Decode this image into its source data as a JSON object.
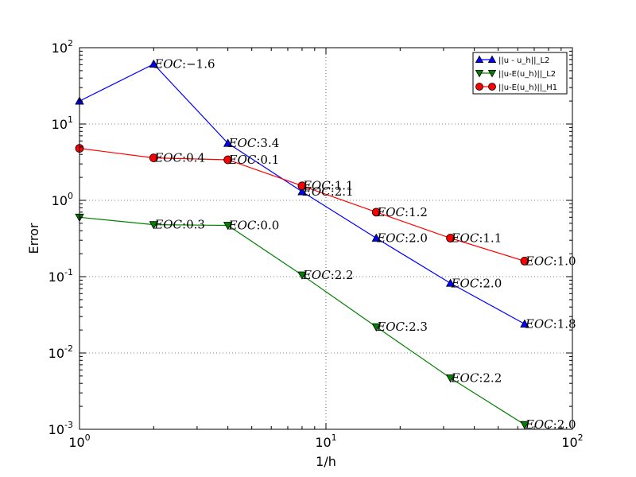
{
  "chart_data": {
    "type": "line",
    "xscale": "log",
    "yscale": "log",
    "xlabel": "1/h",
    "ylabel": "Error",
    "xlim": [
      1,
      100
    ],
    "ylim": [
      0.001,
      100
    ],
    "grid": true,
    "legend_position": "top-right",
    "x_ticks": [
      {
        "value": 1,
        "base": "10",
        "exp": "0"
      },
      {
        "value": 10,
        "base": "10",
        "exp": "1"
      },
      {
        "value": 100,
        "base": "10",
        "exp": "2"
      }
    ],
    "y_ticks": [
      {
        "value": 0.001,
        "base": "10",
        "exp": "-3"
      },
      {
        "value": 0.01,
        "base": "10",
        "exp": "-2"
      },
      {
        "value": 0.1,
        "base": "10",
        "exp": "-1"
      },
      {
        "value": 1,
        "base": "10",
        "exp": "0"
      },
      {
        "value": 10,
        "base": "10",
        "exp": "1"
      },
      {
        "value": 100,
        "base": "10",
        "exp": "2"
      }
    ],
    "x": [
      1,
      2,
      4,
      8,
      16,
      32,
      64
    ],
    "series": [
      {
        "name": "||u - u_h||_L2",
        "color": "#0000ff",
        "marker": "triangle-up",
        "values": [
          20,
          61,
          5.6,
          1.3,
          0.32,
          0.082,
          0.024
        ],
        "annotations": [
          "",
          "−1.6",
          "3.4",
          "2.1",
          "2.0",
          "2.0",
          "1.8"
        ]
      },
      {
        "name": "||u-E(u_h)||_L2",
        "color": "#008000",
        "marker": "triangle-down",
        "values": [
          0.6,
          0.48,
          0.47,
          0.105,
          0.022,
          0.0047,
          0.00115
        ],
        "annotations": [
          "",
          "0.3",
          "0.0",
          "2.2",
          "2.3",
          "2.2",
          "2.0"
        ]
      },
      {
        "name": "||u-E(u_h)||_H1",
        "color": "#ff0000",
        "marker": "circle",
        "values": [
          4.8,
          3.6,
          3.4,
          1.55,
          0.7,
          0.32,
          0.16
        ],
        "annotations": [
          "",
          "0.4",
          "0.1",
          "1.1",
          "1.2",
          "1.1",
          "1.0"
        ]
      }
    ],
    "annotation_prefix": "EOC",
    "annotation_sep": ":"
  }
}
